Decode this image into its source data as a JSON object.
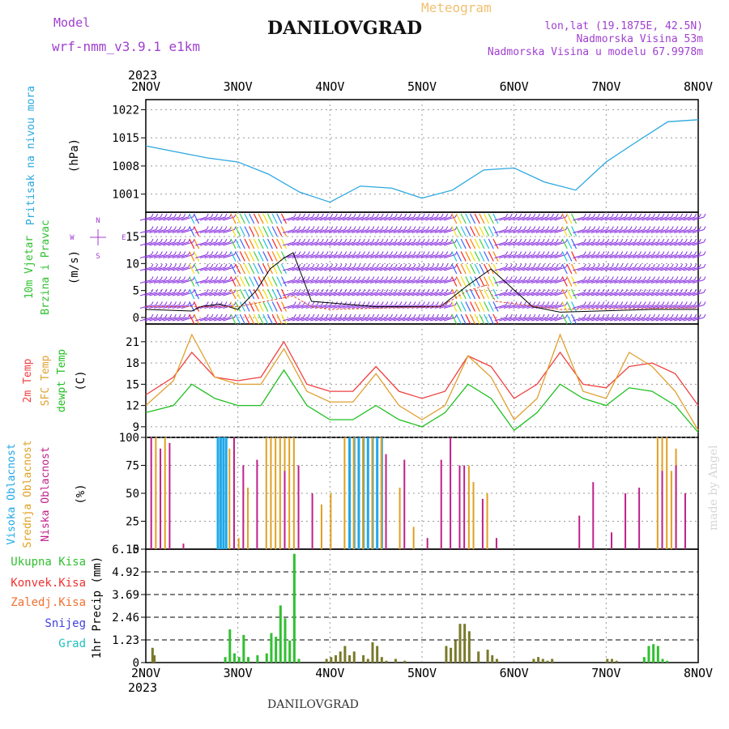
{
  "header": {
    "model_label": "Model",
    "model_name": "wrf-nmm_v3.9.1 e1km",
    "product": "Meteogram",
    "station": "DANILOVGRAD",
    "lonlat": "lon,lat (19.1875E, 42.5N)",
    "elevation": "Nadmorska Visina 53m",
    "model_elevation": "Nadmorska Visina u modelu 67.9978m",
    "signature": "made by Angel",
    "footer_station": "DANILOVGRAD"
  },
  "colors": {
    "purple": "#a040d0",
    "orange": "#f0c070",
    "pressure": "#2aa7e0",
    "temp2m": "#f04040",
    "sfc": "#e0a030",
    "dewpt": "#20c020",
    "high_cloud": "#20a8e8",
    "mid_cloud": "#e0a020",
    "low_cloud": "#c0208a",
    "total_precip": "#30c030",
    "conv_precip": "#f03030",
    "frozen_precip": "#f07030",
    "snow": "#4040e0",
    "hail": "#20c0c0",
    "precip_bar": "#7a7a2a"
  },
  "chart_data": [
    {
      "type": "line",
      "panel": "pressure",
      "ylabel": [
        "Pritisak na nivou mora",
        "(hPa)"
      ],
      "yticks": [
        1001,
        1008,
        1015,
        1022
      ],
      "ylim": [
        996.5,
        1024.5
      ],
      "year_label": "2023",
      "xtick_labels": [
        "2NOV",
        "3NOV",
        "4NOV",
        "5NOV",
        "6NOV",
        "7NOV",
        "8NOV"
      ],
      "x_days": [
        0,
        0.33,
        0.67,
        1,
        1.33,
        1.67,
        2,
        2.33,
        2.67,
        3,
        3.33,
        3.67,
        4,
        4.33,
        4.67,
        5,
        5.33,
        5.67,
        6
      ],
      "series": [
        {
          "values": [
            1013,
            1011.5,
            1010,
            1009,
            1006,
            1001.5,
            999,
            1003,
            1002.5,
            1000,
            1002,
            1007,
            1007.5,
            1004,
            1002,
            1009,
            1014,
            1019,
            1019.5
          ]
        }
      ]
    },
    {
      "type": "line",
      "panel": "wind",
      "ylabel": [
        "10m Vjetar",
        "Brzina i Pravac",
        "(m/s)"
      ],
      "compass": [
        "N",
        "W",
        "E",
        "S"
      ],
      "yticks": [
        0,
        5,
        10,
        15
      ],
      "ylim": [
        -1.2,
        19.5
      ],
      "series": [
        {
          "name": "speed",
          "x_days": [
            0,
            0.5,
            0.6,
            0.8,
            1.0,
            1.2,
            1.35,
            1.5,
            1.6,
            1.8,
            2.5,
            3.2,
            3.5,
            3.75,
            4.2,
            4.5,
            5.5,
            6
          ],
          "values": [
            1.5,
            1.2,
            2,
            2.5,
            1.5,
            5,
            9,
            11,
            12,
            3,
            2,
            2,
            6,
            9,
            2,
            1,
            1.5,
            1.5
          ]
        },
        {
          "name": "gust",
          "x_days": [
            0,
            1.0,
            1.3,
            1.6,
            1.8,
            2.0,
            3.2,
            3.5,
            3.7,
            3.8,
            4.5,
            6
          ],
          "values": [
            2,
            2,
            3,
            4,
            2,
            1.5,
            2,
            5,
            6,
            3,
            1.5,
            1.8
          ]
        }
      ]
    },
    {
      "type": "line",
      "panel": "temperature",
      "ylabel": [
        "2m Temp",
        "SFC Temp",
        "dewpt Temp",
        "(C)"
      ],
      "yticks": [
        9,
        12,
        15,
        18,
        21
      ],
      "ylim": [
        7.5,
        23.5
      ],
      "x_days": [
        0,
        0.3,
        0.5,
        0.75,
        1.0,
        1.25,
        1.5,
        1.75,
        2.0,
        2.25,
        2.5,
        2.75,
        3.0,
        3.25,
        3.5,
        3.75,
        4.0,
        4.25,
        4.5,
        4.75,
        5.0,
        5.25,
        5.5,
        5.75,
        6
      ],
      "series": [
        {
          "name": "2m Temp",
          "values": [
            13.5,
            16,
            19.5,
            16,
            15.5,
            16,
            21,
            15,
            14,
            14,
            17.5,
            14,
            13,
            14,
            19,
            17.5,
            13,
            15,
            19.5,
            15,
            14.5,
            17.5,
            18,
            16.5,
            12
          ]
        },
        {
          "name": "SFC Temp",
          "values": [
            12,
            15.5,
            22,
            16,
            15,
            15,
            20,
            14,
            12.5,
            12.5,
            16.5,
            12,
            10,
            12,
            19,
            16,
            10,
            13,
            22,
            14,
            13,
            19.5,
            17.5,
            14,
            8.5
          ]
        },
        {
          "name": "dewpt Temp",
          "values": [
            11,
            12,
            15,
            13,
            12,
            12,
            17,
            12,
            10,
            10,
            12,
            10,
            9,
            11,
            15,
            13,
            8.5,
            11,
            15,
            13,
            12,
            14.5,
            14,
            12,
            8.2
          ]
        }
      ]
    },
    {
      "type": "bar",
      "panel": "cloud",
      "ylabel": [
        "Visoka Oblacnost",
        "Srednja Oblacnost",
        "Niska Oblacnost",
        "(%)"
      ],
      "yticks": [
        0,
        25,
        50,
        75,
        100
      ],
      "ylim": [
        0,
        100
      ],
      "series": [
        {
          "name": "Visoka Oblacnost",
          "x_days": [
            0.77,
            0.8,
            0.83,
            0.86,
            2.2,
            2.25,
            2.3,
            2.35,
            2.4,
            2.45,
            2.5,
            2.55
          ],
          "values": [
            100,
            100,
            100,
            100,
            100,
            100,
            100,
            100,
            100,
            100,
            100,
            100
          ]
        },
        {
          "name": "Srednja Oblacnost",
          "x_days": [
            0.1,
            0.2,
            0.9,
            1.0,
            1.1,
            1.3,
            1.35,
            1.4,
            1.45,
            1.5,
            1.55,
            1.6,
            1.9,
            2.0,
            2.15,
            2.25,
            2.35,
            2.45,
            2.55,
            2.75,
            2.9,
            3.5,
            3.55,
            3.7,
            5.55,
            5.6,
            5.65,
            5.7,
            5.75
          ],
          "values": [
            100,
            100,
            90,
            10,
            55,
            100,
            100,
            100,
            100,
            100,
            100,
            100,
            40,
            50,
            100,
            100,
            100,
            100,
            100,
            55,
            20,
            75,
            60,
            50,
            100,
            100,
            100,
            70,
            90
          ]
        },
        {
          "name": "Niska Oblacnost",
          "x_days": [
            0.05,
            0.15,
            0.25,
            0.4,
            0.95,
            1.05,
            1.2,
            1.5,
            1.65,
            1.8,
            2.6,
            2.8,
            3.05,
            3.2,
            3.3,
            3.4,
            3.45,
            3.65,
            3.8,
            4.7,
            4.85,
            5.05,
            5.2,
            5.35,
            5.6,
            5.75,
            5.85
          ],
          "values": [
            100,
            90,
            95,
            5,
            100,
            75,
            80,
            70,
            75,
            50,
            85,
            80,
            10,
            80,
            100,
            75,
            75,
            45,
            10,
            30,
            60,
            15,
            50,
            55,
            70,
            75,
            50
          ]
        }
      ]
    },
    {
      "type": "bar",
      "panel": "precipitation",
      "ylabel": [
        "1hr Precip (mm)"
      ],
      "legend": [
        "Ukupna Kisa",
        "Konvek.Kisa",
        "Zaledj.Kisa",
        "Snijeg",
        "Grad"
      ],
      "yticks": [
        0,
        1.23,
        2.46,
        3.69,
        4.92,
        6.15
      ],
      "ylim": [
        0,
        6.15
      ],
      "series": [
        {
          "name": "Ukupna Kisa",
          "x_days": [
            0.06,
            0.08,
            0.85,
            0.9,
            0.95,
            1.0,
            1.05,
            1.1,
            1.2,
            1.3,
            1.35,
            1.4,
            1.45,
            1.5,
            1.55,
            1.6,
            1.65,
            1.95,
            2.0,
            2.05,
            2.1,
            2.15,
            2.2,
            2.25,
            2.35,
            2.4,
            2.45,
            2.5,
            2.55,
            2.6,
            2.7,
            2.8,
            3.25,
            3.3,
            3.35,
            3.4,
            3.45,
            3.5,
            3.6,
            3.7,
            3.75,
            3.8,
            4.2,
            4.25,
            4.3,
            4.35,
            4.4,
            5.0,
            5.05,
            5.1,
            5.4,
            5.45,
            5.5,
            5.55,
            5.6,
            5.65
          ],
          "values": [
            0.8,
            0.4,
            0.3,
            1.8,
            0.5,
            0.3,
            1.5,
            0.3,
            0.4,
            0.5,
            1.6,
            1.4,
            3.1,
            2.4,
            1.2,
            5.9,
            0.2,
            0.2,
            0.3,
            0.4,
            0.6,
            0.9,
            0.4,
            0.6,
            0.4,
            0.2,
            1.1,
            0.9,
            0.3,
            0.1,
            0.2,
            0.1,
            0.9,
            0.8,
            1.2,
            2.1,
            2.1,
            1.7,
            0.6,
            0.7,
            0.4,
            0.2,
            0.2,
            0.3,
            0.2,
            0.1,
            0.2,
            0.2,
            0.2,
            0.1,
            0.3,
            0.9,
            1.0,
            0.9,
            0.2,
            0.1
          ]
        }
      ]
    }
  ]
}
